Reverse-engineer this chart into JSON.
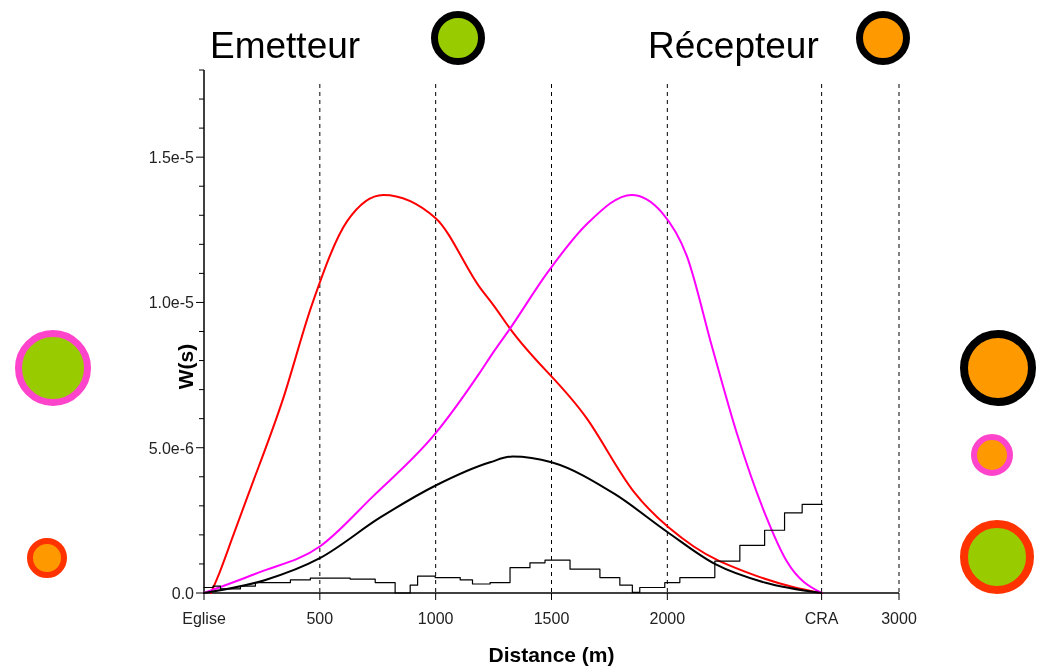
{
  "chart_data": {
    "type": "line",
    "xlabel": "Distance (m)",
    "ylabel": "W(s)",
    "annotations": [
      "Emetteur",
      "Récepteur"
    ],
    "xlim": [
      0,
      3000
    ],
    "ylim": [
      0,
      1.8e-05
    ],
    "xticks": [
      {
        "value": 0,
        "label": "Eglise"
      },
      500,
      1000,
      1500,
      2000,
      {
        "value": 2666,
        "label": "CRA"
      },
      3000
    ],
    "yticks": [
      {
        "value": 0,
        "label": "0.0"
      },
      {
        "value": 1e-06,
        "label": null
      },
      {
        "value": 2e-06,
        "label": null
      },
      {
        "value": 3e-06,
        "label": null
      },
      {
        "value": 4e-06,
        "label": null
      },
      {
        "value": 5e-06,
        "label": "5.0e-6"
      },
      {
        "value": 6e-06,
        "label": null
      },
      {
        "value": 7e-06,
        "label": null
      },
      {
        "value": 8e-06,
        "label": null
      },
      {
        "value": 9e-06,
        "label": null
      },
      {
        "value": 1e-05,
        "label": "1.0e-5"
      },
      {
        "value": 1.1e-05,
        "label": null
      },
      {
        "value": 1.2e-05,
        "label": null
      },
      {
        "value": 1.3e-05,
        "label": null
      },
      {
        "value": 1.4e-05,
        "label": null
      },
      {
        "value": 1.5e-05,
        "label": "1.5e-5"
      },
      {
        "value": 1.6e-05,
        "label": null
      },
      {
        "value": 1.7e-05,
        "label": null
      },
      {
        "value": 1.8e-05,
        "label": null
      }
    ],
    "grid": "x",
    "line_style": "solid",
    "marker": "none",
    "series": [
      {
        "color": "#ff0000",
        "x": [
          30,
          57,
          127,
          187,
          342,
          465,
          618,
          774,
          1000,
          1192,
          1250,
          1321,
          1653,
          1854,
          2114,
          2347,
          2546,
          2666
        ],
        "values": [
          0,
          5e-07,
          2e-06,
          3.3e-06,
          6.7e-06,
          9.9e-06,
          1.28e-05,
          1.37e-05,
          1.29e-05,
          1.05e-05,
          9.9e-06,
          9.1e-06,
          6e-06,
          3.5e-06,
          1.6e-06,
          7e-07,
          2e-07,
          0
        ]
      },
      {
        "color": "#ff00ff",
        "x": [
          0,
          235,
          500,
          726,
          1000,
          1192,
          1250,
          1321,
          1480,
          1653,
          1846,
          1976,
          2084,
          2192,
          2300,
          2423,
          2515,
          2666
        ],
        "values": [
          0,
          7e-07,
          1.6e-06,
          3.3e-06,
          5.5e-06,
          7.6e-06,
          8.3e-06,
          9.1e-06,
          1.1e-05,
          1.27e-05,
          1.37e-05,
          1.31e-05,
          1.16e-05,
          8.5e-06,
          5.5e-06,
          2.7e-06,
          1.1e-06,
          0
        ]
      },
      {
        "color": "#000000",
        "x": [
          0,
          265,
          500,
          761,
          1000,
          1235,
          1332,
          1500,
          1774,
          2000,
          2205,
          2420,
          2666
        ],
        "values": [
          0,
          4.5e-07,
          1.2e-06,
          2.6e-06,
          3.7e-06,
          4.5e-06,
          4.7e-06,
          4.5e-06,
          3.4e-06,
          2.1e-06,
          1e-06,
          3.6e-07,
          0
        ]
      },
      {
        "type": "step",
        "color": "#000000",
        "x": [
          0,
          39,
          71,
          157,
          222,
          373,
          459,
          631,
          739,
          825,
          890,
          922,
          998,
          1106,
          1159,
          1235,
          1321,
          1407,
          1472,
          1580,
          1709,
          1795,
          1849,
          1881,
          1989,
          2054,
          2205,
          2313,
          2420,
          2506,
          2582,
          2668
        ],
        "values": [
          1.9e-07,
          2.4e-07,
          1.4e-07,
          2.4e-07,
          3.6e-07,
          4.5e-07,
          5.1e-07,
          4.8e-07,
          3.6e-07,
          0,
          2.7e-07,
          5.8e-07,
          5.3e-07,
          4.5e-07,
          3.1e-07,
          3.6e-07,
          8.7e-07,
          1.04e-06,
          1.13e-06,
          8.2e-07,
          5.3e-07,
          2.7e-07,
          2e-08,
          1.9e-07,
          3.6e-07,
          5.3e-07,
          1.1e-06,
          1.64e-06,
          2.16e-06,
          2.76e-06,
          3.05e-06,
          3.05e-06
        ]
      }
    ]
  }
}
